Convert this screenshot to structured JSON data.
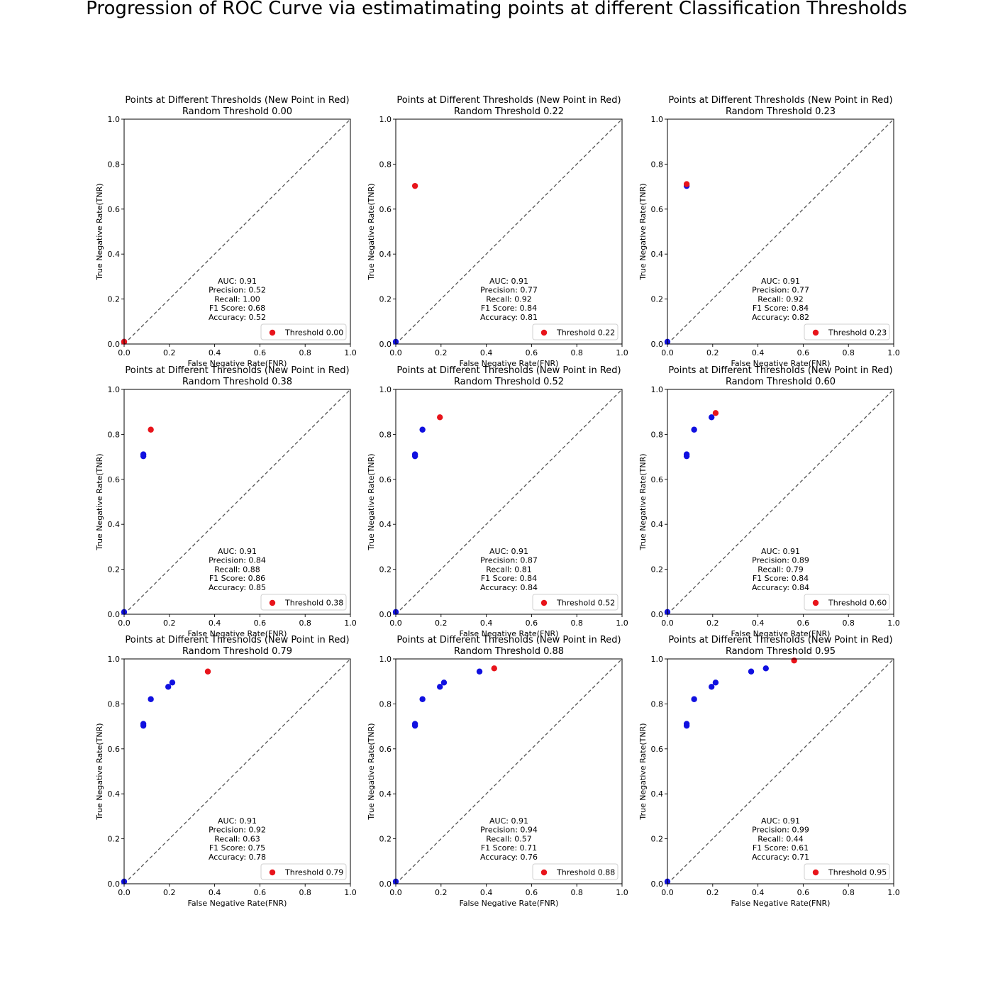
{
  "suptitle": "Progression of ROC Curve via estimatimating points at different Classification Thresholds",
  "colors": {
    "new_point": "#e8141b",
    "old_point": "#1010e0",
    "diagonal": "#555555",
    "axes": "#000000"
  },
  "chart_data": [
    {
      "type": "scatter",
      "title": "Points at Different Thresholds (New Point in Red)",
      "subtitle": "Random Threshold 0.00",
      "xlabel": "False Negative Rate(FNR)",
      "ylabel": "True Negative Rate(TNR)",
      "xlim": [
        0,
        1
      ],
      "ylim": [
        0,
        1
      ],
      "ticks": [
        "0.0",
        "0.2",
        "0.4",
        "0.6",
        "0.8",
        "1.0"
      ],
      "diagonal": true,
      "old_points": [
        [
          0.0,
          0.01
        ]
      ],
      "new_point": [
        0.0,
        0.01
      ],
      "legend": "Threshold 0.00",
      "legend_position": "lower-right",
      "metrics": [
        "AUC: 0.91",
        "Precision: 0.52",
        "Recall: 1.00",
        "F1 Score: 0.68",
        "Accuracy: 0.52"
      ]
    },
    {
      "type": "scatter",
      "title": "Points at Different Thresholds (New Point in Red)",
      "subtitle": "Random Threshold 0.22",
      "xlabel": "False Negative Rate(FNR)",
      "ylabel": "True Negative Rate(TNR)",
      "xlim": [
        0,
        1
      ],
      "ylim": [
        0,
        1
      ],
      "ticks": [
        "0.0",
        "0.2",
        "0.4",
        "0.6",
        "0.8",
        "1.0"
      ],
      "diagonal": true,
      "old_points": [
        [
          0.0,
          0.01
        ]
      ],
      "new_point": [
        0.085,
        0.703
      ],
      "legend": "Threshold 0.22",
      "legend_position": "lower-right",
      "metrics": [
        "AUC: 0.91",
        "Precision: 0.77",
        "Recall: 0.92",
        "F1 Score: 0.84",
        "Accuracy: 0.81"
      ]
    },
    {
      "type": "scatter",
      "title": "Points at Different Thresholds (New Point in Red)",
      "subtitle": "Random Threshold 0.23",
      "xlabel": "False Negative Rate(FNR)",
      "ylabel": "True Negative Rate(TNR)",
      "xlim": [
        0,
        1
      ],
      "ylim": [
        0,
        1
      ],
      "ticks": [
        "0.0",
        "0.2",
        "0.4",
        "0.6",
        "0.8",
        "1.0"
      ],
      "diagonal": true,
      "old_points": [
        [
          0.0,
          0.01
        ],
        [
          0.085,
          0.703
        ]
      ],
      "new_point": [
        0.085,
        0.711
      ],
      "legend": "Threshold 0.23",
      "legend_position": "lower-right",
      "metrics": [
        "AUC: 0.91",
        "Precision: 0.77",
        "Recall: 0.92",
        "F1 Score: 0.84",
        "Accuracy: 0.82"
      ]
    },
    {
      "type": "scatter",
      "title": "Points at Different Thresholds (New Point in Red)",
      "subtitle": "Random Threshold 0.38",
      "xlabel": "False Negative Rate(FNR)",
      "ylabel": "True Negative Rate(TNR)",
      "xlim": [
        0,
        1
      ],
      "ylim": [
        0,
        1
      ],
      "ticks": [
        "0.0",
        "0.2",
        "0.4",
        "0.6",
        "0.8",
        "1.0"
      ],
      "diagonal": true,
      "old_points": [
        [
          0.0,
          0.01
        ],
        [
          0.085,
          0.703
        ],
        [
          0.085,
          0.711
        ]
      ],
      "new_point": [
        0.118,
        0.821
      ],
      "legend": "Threshold 0.38",
      "legend_position": "lower-right",
      "metrics": [
        "AUC: 0.91",
        "Precision: 0.84",
        "Recall: 0.88",
        "F1 Score: 0.86",
        "Accuracy: 0.85"
      ]
    },
    {
      "type": "scatter",
      "title": "Points at Different Thresholds (New Point in Red)",
      "subtitle": "Random Threshold 0.52",
      "xlabel": "False Negative Rate(FNR)",
      "ylabel": "True Negative Rate(TNR)",
      "xlim": [
        0,
        1
      ],
      "ylim": [
        0,
        1
      ],
      "ticks": [
        "0.0",
        "0.2",
        "0.4",
        "0.6",
        "0.8",
        "1.0"
      ],
      "diagonal": true,
      "old_points": [
        [
          0.0,
          0.01
        ],
        [
          0.085,
          0.703
        ],
        [
          0.085,
          0.711
        ],
        [
          0.118,
          0.821
        ]
      ],
      "new_point": [
        0.195,
        0.876
      ],
      "legend": "Threshold 0.52",
      "legend_position": "lower-right",
      "metrics": [
        "AUC: 0.91",
        "Precision: 0.87",
        "Recall: 0.81",
        "F1 Score: 0.84",
        "Accuracy: 0.84"
      ]
    },
    {
      "type": "scatter",
      "title": "Points at Different Thresholds (New Point in Red)",
      "subtitle": "Random Threshold 0.60",
      "xlabel": "False Negative Rate(FNR)",
      "ylabel": "True Negative Rate(TNR)",
      "xlim": [
        0,
        1
      ],
      "ylim": [
        0,
        1
      ],
      "ticks": [
        "0.0",
        "0.2",
        "0.4",
        "0.6",
        "0.8",
        "1.0"
      ],
      "diagonal": true,
      "old_points": [
        [
          0.0,
          0.01
        ],
        [
          0.085,
          0.703
        ],
        [
          0.085,
          0.711
        ],
        [
          0.118,
          0.821
        ],
        [
          0.195,
          0.876
        ]
      ],
      "new_point": [
        0.213,
        0.895
      ],
      "legend": "Threshold 0.60",
      "legend_position": "lower-right",
      "metrics": [
        "AUC: 0.91",
        "Precision: 0.89",
        "Recall: 0.79",
        "F1 Score: 0.84",
        "Accuracy: 0.84"
      ]
    },
    {
      "type": "scatter",
      "title": "Points at Different Thresholds (New Point in Red)",
      "subtitle": "Random Threshold 0.79",
      "xlabel": "False Negative Rate(FNR)",
      "ylabel": "True Negative Rate(TNR)",
      "xlim": [
        0,
        1
      ],
      "ylim": [
        0,
        1
      ],
      "ticks": [
        "0.0",
        "0.2",
        "0.4",
        "0.6",
        "0.8",
        "1.0"
      ],
      "diagonal": true,
      "old_points": [
        [
          0.0,
          0.01
        ],
        [
          0.085,
          0.703
        ],
        [
          0.085,
          0.711
        ],
        [
          0.118,
          0.821
        ],
        [
          0.195,
          0.876
        ],
        [
          0.213,
          0.895
        ]
      ],
      "new_point": [
        0.37,
        0.944
      ],
      "legend": "Threshold 0.79",
      "legend_position": "lower-right",
      "metrics": [
        "AUC: 0.91",
        "Precision: 0.92",
        "Recall: 0.63",
        "F1 Score: 0.75",
        "Accuracy: 0.78"
      ]
    },
    {
      "type": "scatter",
      "title": "Points at Different Thresholds (New Point in Red)",
      "subtitle": "Random Threshold 0.88",
      "xlabel": "False Negative Rate(FNR)",
      "ylabel": "True Negative Rate(TNR)",
      "xlim": [
        0,
        1
      ],
      "ylim": [
        0,
        1
      ],
      "ticks": [
        "0.0",
        "0.2",
        "0.4",
        "0.6",
        "0.8",
        "1.0"
      ],
      "diagonal": true,
      "old_points": [
        [
          0.0,
          0.01
        ],
        [
          0.085,
          0.703
        ],
        [
          0.085,
          0.711
        ],
        [
          0.118,
          0.821
        ],
        [
          0.195,
          0.876
        ],
        [
          0.213,
          0.895
        ],
        [
          0.37,
          0.944
        ]
      ],
      "new_point": [
        0.435,
        0.958
      ],
      "legend": "Threshold 0.88",
      "legend_position": "lower-right",
      "metrics": [
        "AUC: 0.91",
        "Precision: 0.94",
        "Recall: 0.57",
        "F1 Score: 0.71",
        "Accuracy: 0.76"
      ]
    },
    {
      "type": "scatter",
      "title": "Points at Different Thresholds (New Point in Red)",
      "subtitle": "Random Threshold 0.95",
      "xlabel": "False Negative Rate(FNR)",
      "ylabel": "True Negative Rate(TNR)",
      "xlim": [
        0,
        1
      ],
      "ylim": [
        0,
        1
      ],
      "ticks": [
        "0.0",
        "0.2",
        "0.4",
        "0.6",
        "0.8",
        "1.0"
      ],
      "diagonal": true,
      "old_points": [
        [
          0.0,
          0.01
        ],
        [
          0.085,
          0.703
        ],
        [
          0.085,
          0.711
        ],
        [
          0.118,
          0.821
        ],
        [
          0.195,
          0.876
        ],
        [
          0.213,
          0.895
        ],
        [
          0.37,
          0.944
        ],
        [
          0.435,
          0.958
        ]
      ],
      "new_point": [
        0.56,
        0.993
      ],
      "legend": "Threshold 0.95",
      "legend_position": "lower-right",
      "metrics": [
        "AUC: 0.91",
        "Precision: 0.99",
        "Recall: 0.44",
        "F1 Score: 0.61",
        "Accuracy: 0.71"
      ]
    }
  ]
}
